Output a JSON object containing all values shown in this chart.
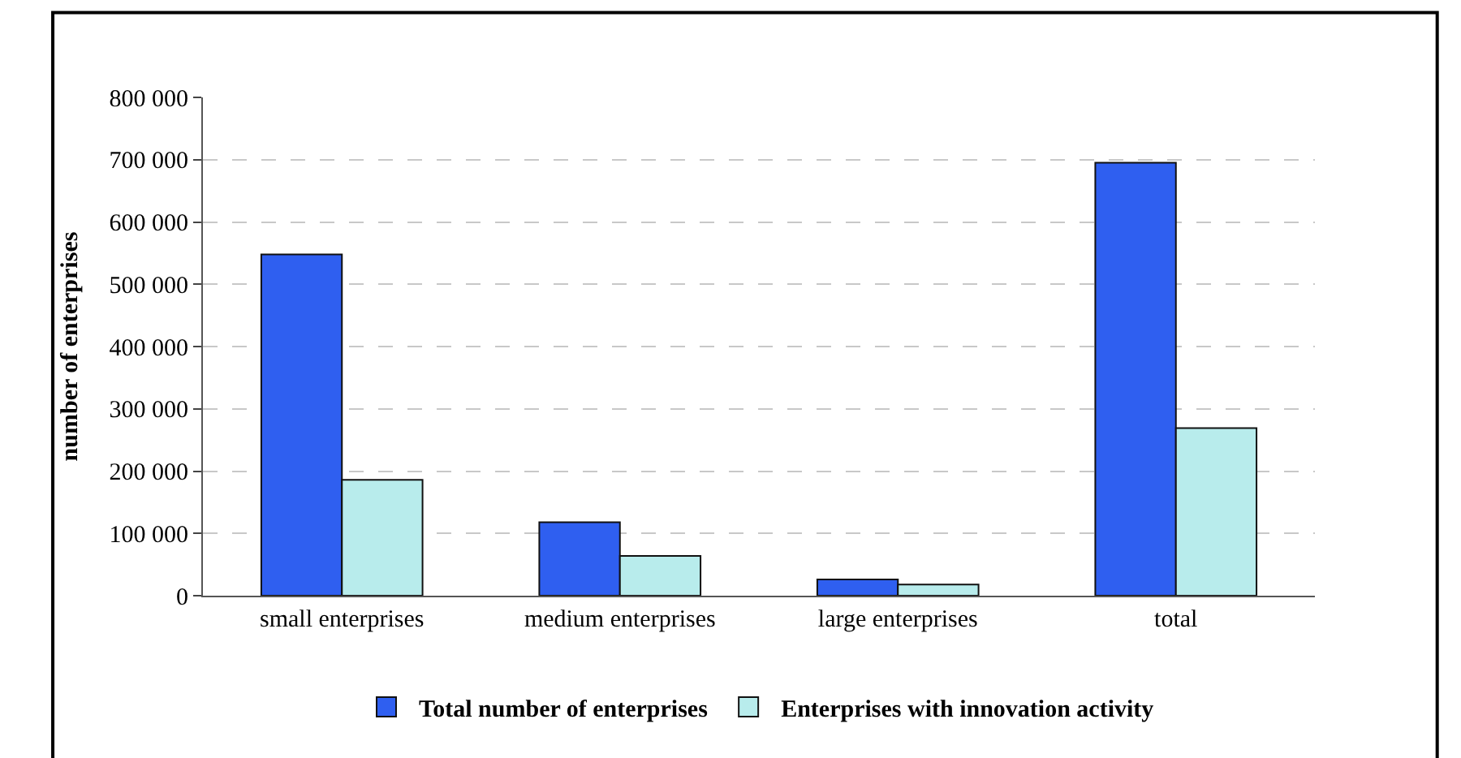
{
  "chart_data": {
    "type": "bar",
    "ylabel": "number of enterprises",
    "categories": [
      "small enterprises",
      "medium enterprises",
      "large enterprises",
      "total"
    ],
    "series": [
      {
        "name": "Total number of enterprises",
        "color": "#2f5ff0",
        "values": [
          548000,
          118000,
          26000,
          695000
        ]
      },
      {
        "name": "Enterprises with innovation activity",
        "color": "#b8ecec",
        "values": [
          186000,
          64000,
          18000,
          269000
        ]
      }
    ],
    "ylim": [
      0,
      800000
    ],
    "yticks": [
      0,
      {
        "value": 100000,
        "label": "100 000"
      },
      {
        "value": 200000,
        "label": "200 000"
      },
      {
        "value": 300000,
        "label": "300 000"
      },
      {
        "value": 400000,
        "label": "400 000"
      },
      {
        "value": 500000,
        "label": "500 000"
      },
      {
        "value": 600000,
        "label": "600 000"
      },
      {
        "value": 700000,
        "label": "700 000"
      },
      {
        "value": 800000,
        "label": "800 000"
      }
    ],
    "grid": "y",
    "legend": "bottom"
  }
}
